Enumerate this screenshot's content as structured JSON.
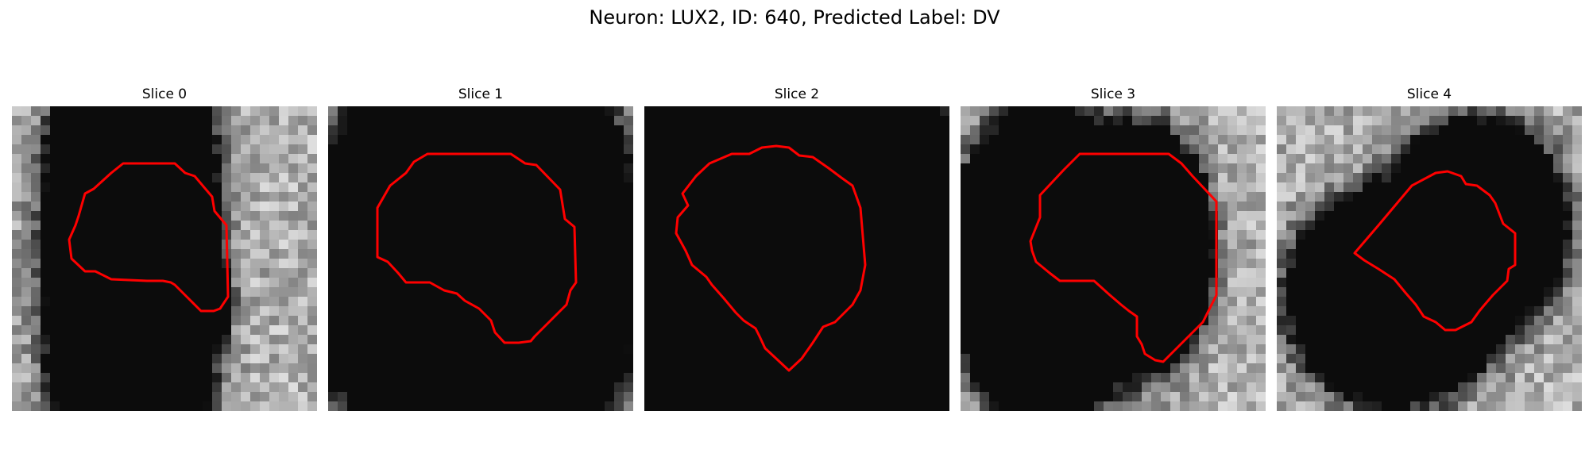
{
  "figure": {
    "title": "Neuron: LUX2, ID: 640, Predicted Label: DV"
  },
  "panels": [
    {
      "title": "Slice 0"
    },
    {
      "title": "Slice 1"
    },
    {
      "title": "Slice 2"
    },
    {
      "title": "Slice 3"
    },
    {
      "title": "Slice 4"
    }
  ],
  "colors": {
    "contour": "#ff0000",
    "background": "#ffffff"
  }
}
